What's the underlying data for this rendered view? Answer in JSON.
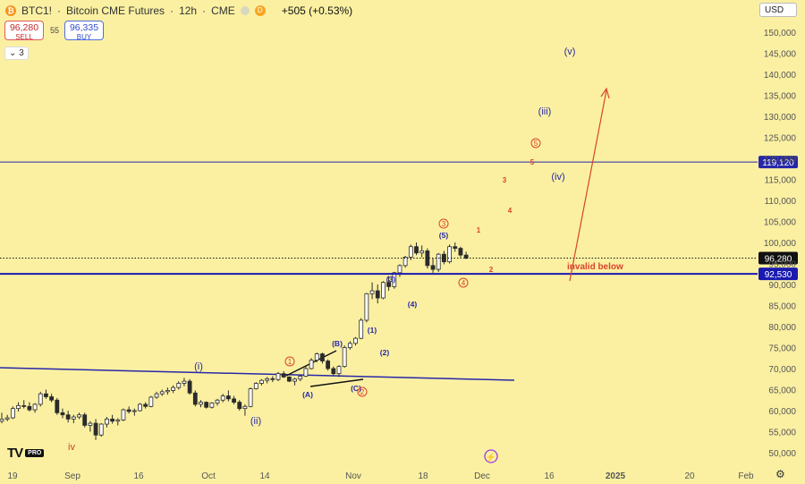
{
  "header": {
    "symbol": "BTC1!",
    "title": "Bitcoin CME Futures",
    "interval": "12h",
    "exchange": "CME",
    "badge": "D",
    "change": "+505 (+0.53%)"
  },
  "quotes": {
    "sell_price": "96,280",
    "sell_label": "SELL",
    "buy_price": "96,335",
    "buy_label": "BUY",
    "spread": "55"
  },
  "indicators_toggle": "3",
  "currency": "USD",
  "logo_badge": "PRO",
  "colors": {
    "background": "#fbf0a2",
    "wave_blue": "#2727a8",
    "wave_red": "#d9432b",
    "candle": "#2b2b2b"
  },
  "chart_data": {
    "type": "candlestick",
    "title": "BTC1! · Bitcoin CME Futures · 12h · CME",
    "y_axis": {
      "ticks": [
        50000,
        55000,
        60000,
        65000,
        70000,
        75000,
        80000,
        85000,
        90000,
        95000,
        100000,
        105000,
        110000,
        115000,
        120000,
        125000,
        130000,
        135000,
        140000,
        145000,
        150000
      ],
      "tick_labels": [
        "50,000",
        "55,000",
        "60,000",
        "65,000",
        "70,000",
        "75,000",
        "80,000",
        "85,000",
        "90,000",
        "95,000",
        "100,000",
        "105,000",
        "110,000",
        "115,000",
        "120,000",
        "125,000",
        "130,000",
        "135,000",
        "140,000",
        "145,000",
        "150,000"
      ],
      "range": [
        48500,
        153000
      ]
    },
    "x_axis": {
      "tick_labels": [
        "19",
        "Sep",
        "16",
        "Oct",
        "14",
        "Nov",
        "18",
        "Dec",
        "16",
        "2025",
        "20",
        "Feb"
      ]
    },
    "price_lines": [
      {
        "label": "119,120",
        "value": 119120,
        "style": "solid",
        "color": "#2727a8"
      },
      {
        "label": "96,280",
        "value": 96280,
        "style": "dotted",
        "color": "#111111"
      },
      {
        "label": "92,530",
        "value": 92530,
        "style": "solid",
        "color": "#1a1ab0"
      }
    ],
    "trendline": {
      "color": "#2727a8"
    },
    "annotations": {
      "invalid_text": "invalid below",
      "blue_labels": [
        {
          "text": "(i)"
        },
        {
          "text": "(ii)"
        },
        {
          "text": "(iii)"
        },
        {
          "text": "(iv)"
        },
        {
          "text": "(v)"
        },
        {
          "text": "(A)"
        },
        {
          "text": "(B)"
        },
        {
          "text": "(C)"
        },
        {
          "text": "(1)"
        },
        {
          "text": "(2)"
        },
        {
          "text": "(3)"
        },
        {
          "text": "(4)"
        },
        {
          "text": "(5)"
        }
      ],
      "red_circled": [
        "1",
        "2",
        "3",
        "4",
        "5"
      ],
      "red_plain": [
        "1",
        "2",
        "3",
        "4",
        "5"
      ],
      "wave_label_iv": "iv"
    },
    "candles_ohlc": [
      [
        57500,
        59500,
        57000,
        58000
      ],
      [
        58000,
        59000,
        57500,
        58300
      ],
      [
        58300,
        61000,
        58000,
        60500
      ],
      [
        60500,
        62000,
        59800,
        61200
      ],
      [
        61200,
        62500,
        60500,
        61000
      ],
      [
        61000,
        62000,
        59800,
        60200
      ],
      [
        60200,
        61800,
        59500,
        61500
      ],
      [
        61500,
        64500,
        61000,
        64000
      ],
      [
        64000,
        65000,
        62800,
        63300
      ],
      [
        63300,
        64000,
        62000,
        62500
      ],
      [
        62500,
        63000,
        59000,
        59500
      ],
      [
        59500,
        60500,
        58200,
        59000
      ],
      [
        59000,
        60000,
        57200,
        58000
      ],
      [
        58000,
        59000,
        57000,
        58500
      ],
      [
        58500,
        59500,
        58000,
        59000
      ],
      [
        59000,
        59500,
        56000,
        56500
      ],
      [
        56500,
        57500,
        55000,
        57000
      ],
      [
        57000,
        58000,
        53000,
        54200
      ],
      [
        54200,
        57000,
        53800,
        56800
      ],
      [
        56800,
        58500,
        56000,
        58000
      ],
      [
        58000,
        59000,
        56900,
        57500
      ],
      [
        57500,
        58200,
        56500,
        57800
      ],
      [
        57800,
        60500,
        57500,
        60200
      ],
      [
        60200,
        61000,
        59300,
        59800
      ],
      [
        59800,
        60500,
        58800,
        60000
      ],
      [
        60000,
        61800,
        59800,
        61500
      ],
      [
        61500,
        62000,
        60500,
        61000
      ],
      [
        61000,
        63500,
        60800,
        63200
      ],
      [
        63200,
        64500,
        62800,
        64000
      ],
      [
        64000,
        65000,
        63500,
        64500
      ],
      [
        64500,
        65500,
        63800,
        64800
      ],
      [
        64800,
        66000,
        64200,
        65500
      ],
      [
        65500,
        67000,
        65000,
        66500
      ],
      [
        66500,
        67800,
        65800,
        67000
      ],
      [
        67000,
        67500,
        63800,
        64200
      ],
      [
        64200,
        64800,
        61000,
        61500
      ],
      [
        61500,
        62500,
        60800,
        62000
      ],
      [
        62000,
        62200,
        60500,
        60800
      ],
      [
        60800,
        62000,
        60500,
        61800
      ],
      [
        61800,
        62800,
        61200,
        62500
      ],
      [
        62500,
        64000,
        62000,
        63500
      ],
      [
        63500,
        64800,
        62200,
        62800
      ],
      [
        62800,
        63500,
        61500,
        62000
      ],
      [
        62000,
        62500,
        60000,
        60500
      ],
      [
        60500,
        61500,
        58800,
        61000
      ],
      [
        61000,
        65500,
        60800,
        65200
      ],
      [
        65200,
        66800,
        65000,
        66500
      ],
      [
        66500,
        67500,
        66000,
        67200
      ],
      [
        67200,
        68000,
        66500,
        67600
      ],
      [
        67600,
        68200,
        66800,
        67400
      ],
      [
        67400,
        69200,
        67000,
        68800
      ],
      [
        68800,
        69400,
        67800,
        68000
      ],
      [
        68000,
        68200,
        66800,
        67000
      ],
      [
        67000,
        67800,
        66000,
        67500
      ],
      [
        67500,
        68500,
        67000,
        68200
      ],
      [
        68200,
        70500,
        68000,
        70000
      ],
      [
        70000,
        72500,
        69800,
        72000
      ],
      [
        72000,
        73800,
        71500,
        73500
      ],
      [
        73500,
        73800,
        71200,
        71800
      ],
      [
        71800,
        72200,
        69500,
        70000
      ],
      [
        70000,
        70500,
        68200,
        68800
      ],
      [
        68800,
        70800,
        68000,
        70500
      ],
      [
        70500,
        75500,
        70200,
        75000
      ],
      [
        75000,
        76500,
        74500,
        76000
      ],
      [
        76000,
        77500,
        75500,
        77200
      ],
      [
        77200,
        82000,
        77000,
        81500
      ],
      [
        81500,
        88000,
        81000,
        87800
      ],
      [
        87800,
        90500,
        86500,
        88500
      ],
      [
        88500,
        90000,
        85500,
        86800
      ],
      [
        86800,
        90800,
        86500,
        90500
      ],
      [
        90500,
        92000,
        88500,
        89500
      ],
      [
        89500,
        93000,
        89000,
        92800
      ],
      [
        92800,
        94800,
        91800,
        94500
      ],
      [
        94500,
        96800,
        94000,
        96500
      ],
      [
        96500,
        99500,
        95800,
        99000
      ],
      [
        99000,
        100000,
        97000,
        97500
      ],
      [
        97500,
        99300,
        96500,
        98000
      ],
      [
        98000,
        98600,
        93800,
        94500
      ],
      [
        94500,
        96200,
        92800,
        93600
      ],
      [
        93600,
        97500,
        93000,
        97200
      ],
      [
        97200,
        98000,
        94800,
        95400
      ],
      [
        95400,
        99500,
        95000,
        99000
      ],
      [
        99000,
        100000,
        97800,
        98600
      ],
      [
        98600,
        99000,
        96500,
        97000
      ],
      [
        97000,
        97800,
        96000,
        96280
      ]
    ]
  }
}
